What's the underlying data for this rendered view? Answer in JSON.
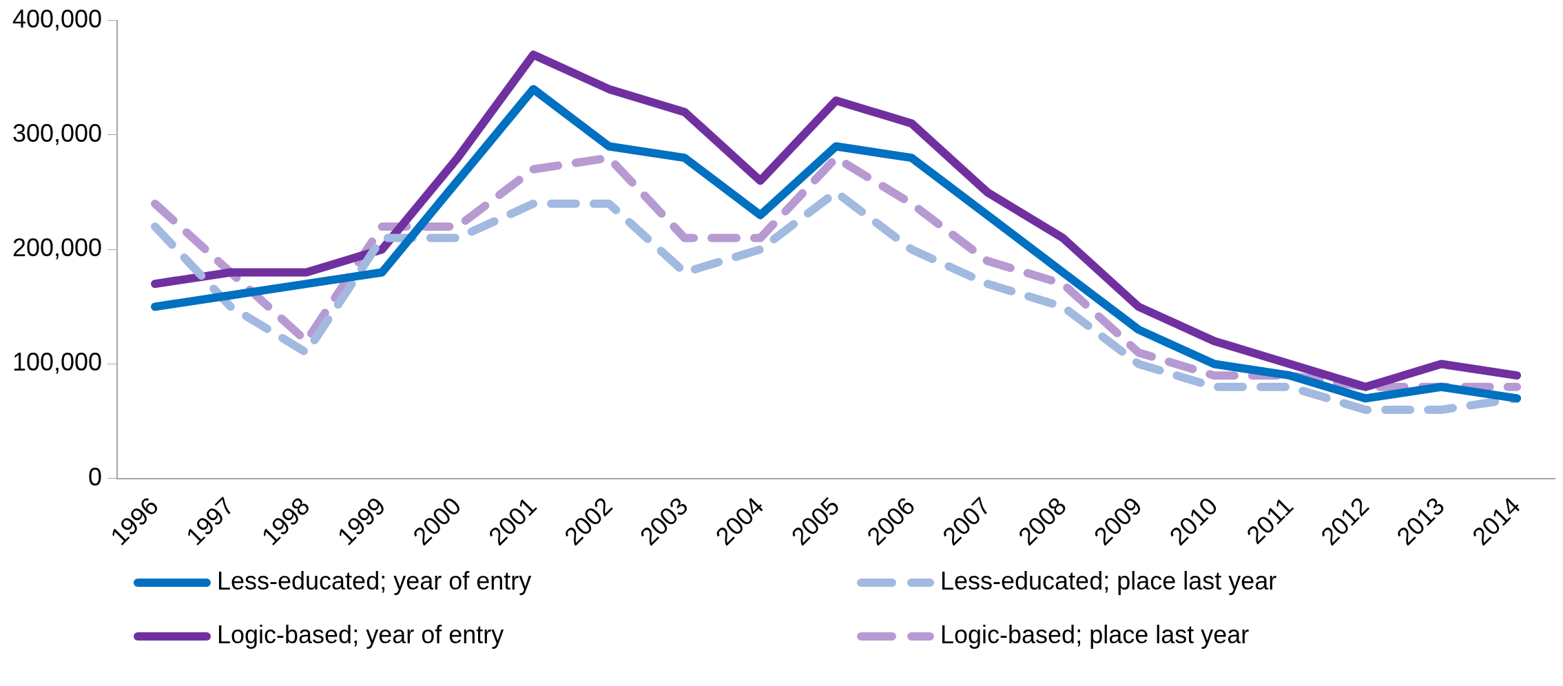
{
  "chart_data": {
    "type": "line",
    "categories": [
      "1996",
      "1997",
      "1998",
      "1999",
      "2000",
      "2001",
      "2002",
      "2003",
      "2004",
      "2005",
      "2006",
      "2007",
      "2008",
      "2009",
      "2010",
      "2011",
      "2012",
      "2013",
      "2014"
    ],
    "series": [
      {
        "name": "Less-educated; year of entry",
        "color": "#0070c0",
        "line_style": "solid",
        "values": [
          150000,
          160000,
          170000,
          180000,
          260000,
          340000,
          290000,
          280000,
          230000,
          290000,
          280000,
          230000,
          180000,
          130000,
          100000,
          90000,
          70000,
          80000,
          70000
        ]
      },
      {
        "name": "Less-educated; place last year",
        "color": "#a2b9e0",
        "line_style": "dashed",
        "values": [
          220000,
          150000,
          110000,
          210000,
          210000,
          240000,
          240000,
          180000,
          200000,
          250000,
          200000,
          170000,
          150000,
          100000,
          80000,
          80000,
          60000,
          60000,
          70000
        ]
      },
      {
        "name": "Logic-based; year of entry",
        "color": "#7030a0",
        "line_style": "solid",
        "values": [
          170000,
          180000,
          180000,
          200000,
          280000,
          370000,
          340000,
          320000,
          260000,
          330000,
          310000,
          250000,
          210000,
          150000,
          120000,
          100000,
          80000,
          100000,
          90000
        ]
      },
      {
        "name": "Logic-based; place last year",
        "color": "#b79ad2",
        "line_style": "dashed",
        "values": [
          240000,
          180000,
          120000,
          220000,
          220000,
          270000,
          280000,
          210000,
          210000,
          280000,
          240000,
          190000,
          170000,
          110000,
          90000,
          90000,
          80000,
          80000,
          80000
        ]
      }
    ],
    "ylim": [
      0,
      400000
    ],
    "yticks": [
      0,
      {
        "value": 100000,
        "label": "100,000"
      },
      {
        "value": 200000,
        "label": "200,000"
      },
      {
        "value": 300000,
        "label": "300,000"
      },
      {
        "value": 400000,
        "label": "400,000"
      }
    ],
    "grid": false,
    "legend": "bottom",
    "marker": "none"
  }
}
